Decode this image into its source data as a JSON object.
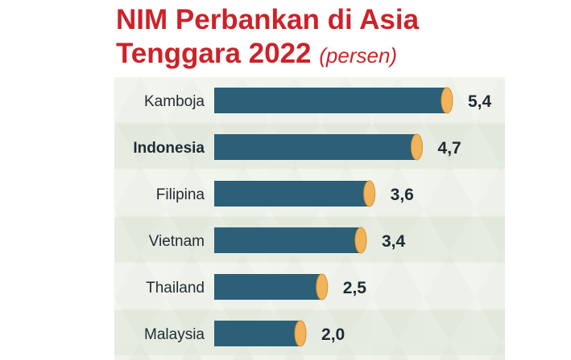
{
  "title": {
    "line1": "NIM Perbankan di Asia",
    "line2": "Tenggara 2022",
    "unit": "(persen)"
  },
  "colors": {
    "title": "#cc2229",
    "bar": "#2c5f78",
    "cap": "#f2b35a",
    "row_light": "#f3f5ef",
    "row_dark": "#dfe5d8"
  },
  "chart_data": {
    "type": "bar",
    "orientation": "horizontal",
    "title": "NIM Perbankan di Asia Tenggara 2022",
    "unit": "(persen)",
    "categories": [
      "Kamboja",
      "Indonesia",
      "Filipina",
      "Vietnam",
      "Thailand",
      "Malaysia"
    ],
    "values": [
      5.4,
      4.7,
      3.6,
      3.4,
      2.5,
      2.0
    ],
    "value_labels": [
      "5,4",
      "4,7",
      "3,6",
      "3,4",
      "2,5",
      "2,0"
    ],
    "highlight": "Indonesia",
    "xlim": [
      0,
      5.4
    ],
    "grid": false,
    "legend": "none"
  }
}
